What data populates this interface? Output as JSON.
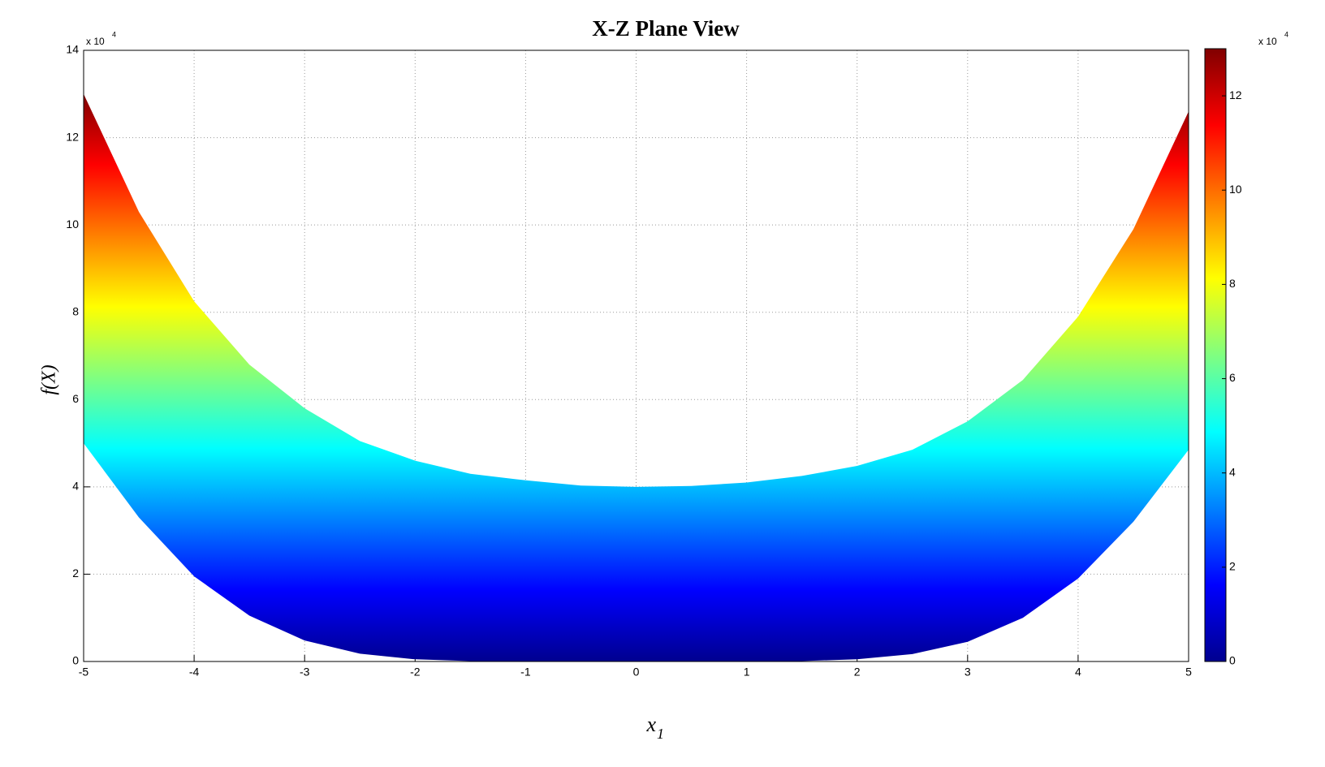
{
  "chart_data": {
    "type": "band",
    "title": "X-Z Plane View",
    "xlabel": {
      "text": "x",
      "subscript": "1"
    },
    "ylabel": "f(X)",
    "y_exponent": {
      "base": "x 10",
      "power": "4"
    },
    "colorbar_exponent": {
      "base": "x 10",
      "power": "4"
    },
    "x": [
      -5,
      -4.5,
      -4,
      -3.5,
      -3,
      -2.5,
      -2,
      -1.5,
      -1,
      -0.5,
      0,
      0.5,
      1,
      1.5,
      2,
      2.5,
      3,
      3.5,
      4,
      4.5,
      5
    ],
    "series": [
      {
        "values": [
          130000,
          103000,
          82500,
          68000,
          58000,
          50500,
          46000,
          43000,
          41500,
          40300,
          40000,
          40200,
          41000,
          42500,
          44800,
          48500,
          55000,
          64500,
          79000,
          99000,
          126000
        ]
      },
      {
        "values": [
          50000,
          33000,
          19500,
          10500,
          4800,
          1800,
          500,
          100,
          0,
          0,
          0,
          0,
          0,
          100,
          500,
          1700,
          4500,
          10000,
          19000,
          32000,
          48500
        ]
      }
    ],
    "colormap": [
      "#00008f",
      "#0000ff",
      "#0080ff",
      "#00ffff",
      "#80ff80",
      "#ffff00",
      "#ff8000",
      "#ff0000",
      "#800000"
    ],
    "xlim": [
      -5,
      5
    ],
    "xticks": [
      -5,
      -4,
      -3,
      -2,
      -1,
      0,
      1,
      2,
      3,
      4,
      5
    ],
    "ylim": [
      0,
      140000
    ],
    "yticks": [
      {
        "value": 0,
        "label": "0"
      },
      {
        "value": 20000,
        "label": "2"
      },
      {
        "value": 40000,
        "label": "4"
      },
      {
        "value": 60000,
        "label": "6"
      },
      {
        "value": 80000,
        "label": "8"
      },
      {
        "value": 100000,
        "label": "10"
      },
      {
        "value": 120000,
        "label": "12"
      },
      {
        "value": 140000,
        "label": "14"
      }
    ],
    "clim": [
      0,
      130000
    ],
    "cticks": [
      {
        "value": 0,
        "label": "0"
      },
      {
        "value": 20000,
        "label": "2"
      },
      {
        "value": 40000,
        "label": "4"
      },
      {
        "value": 60000,
        "label": "6"
      },
      {
        "value": 80000,
        "label": "8"
      },
      {
        "value": 100000,
        "label": "10"
      },
      {
        "value": 120000,
        "label": "12"
      }
    ],
    "grid": true
  }
}
